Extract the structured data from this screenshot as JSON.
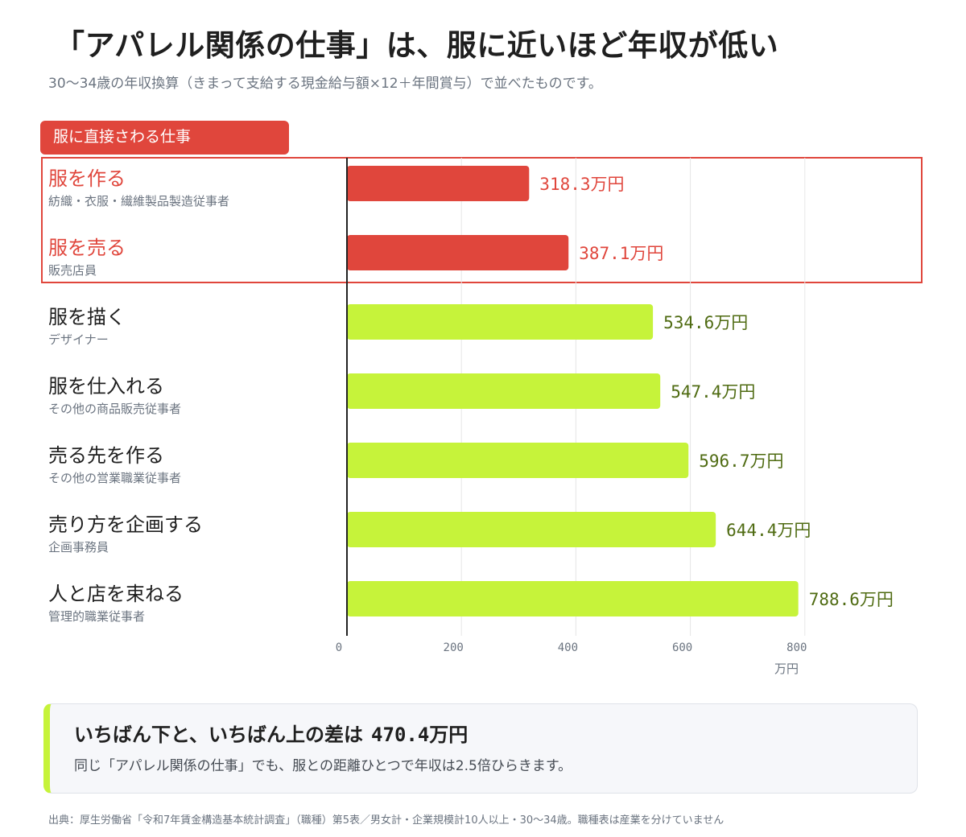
{
  "title": "「アパレル関係の仕事」は、服に近いほど年収が低い",
  "subtitle": "30〜34歳の年収換算（きまって支給する現金給与額×12＋年間賞与）で並べたものです。",
  "group_label": "服に直接さわる仕事",
  "colors": {
    "highlight": "#e0463c",
    "other_bar": "#c6f33a",
    "other_value_text": "#4f6b12",
    "axis": "#222222",
    "grid": "#e6e6e6"
  },
  "chart_data": {
    "type": "bar",
    "orientation": "horizontal",
    "categories": [
      "服を作る",
      "服を売る",
      "服を描く",
      "服を仕入れる",
      "売る先を作る",
      "売り方を企画する",
      "人と店を束ねる"
    ],
    "sublabels": [
      "紡織・衣服・繊維製品製造従事者",
      "販売店員",
      "デザイナー",
      "その他の商品販売従事者",
      "その他の営業職業従事者",
      "企画事務員",
      "管理的職業従事者"
    ],
    "values": [
      318.3,
      387.1,
      534.6,
      547.4,
      596.7,
      644.4,
      788.6
    ],
    "value_labels": [
      "318.3万円",
      "387.1万円",
      "534.6万円",
      "547.4万円",
      "596.7万円",
      "644.4万円",
      "788.6万円"
    ],
    "highlighted": [
      true,
      true,
      false,
      false,
      false,
      false,
      false
    ],
    "xticks": [
      0,
      200,
      400,
      600,
      800
    ],
    "xlim": [
      0,
      800
    ],
    "xlabel": "万円",
    "grid": true
  },
  "summary": {
    "heading": "いちばん下と、いちばん上の差は",
    "difference": "470.4万円",
    "body": "同じ「アパレル関係の仕事」でも、服との距離ひとつで年収は2.5倍ひらきます。"
  },
  "source": "出典：厚生労働省「令和7年賃金構造基本統計調査」（職種）第5表／男女計・企業規模計10人以上・30〜34歳。職種表は産業を分けていません"
}
